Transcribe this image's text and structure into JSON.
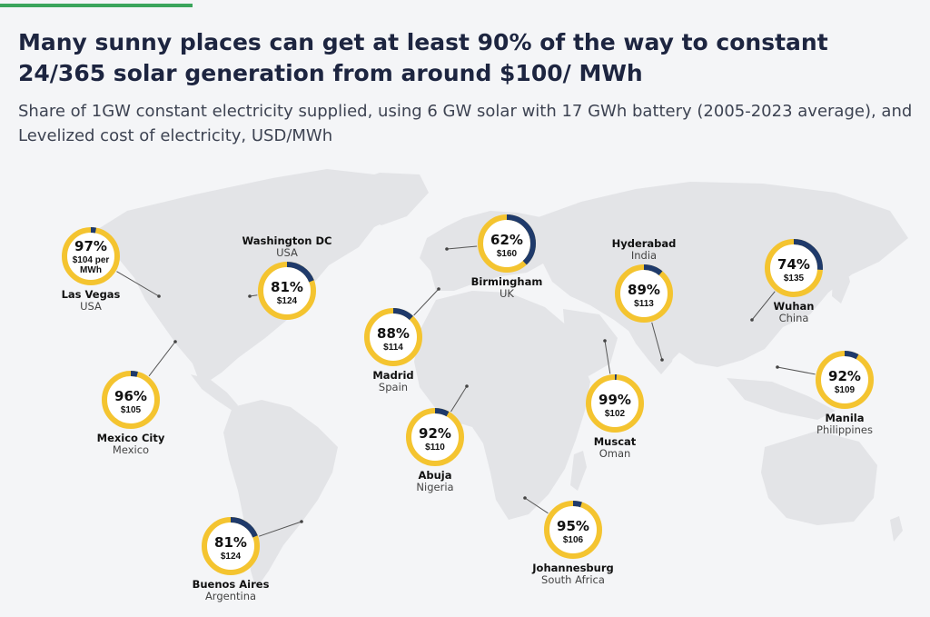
{
  "header": {
    "title": "Many sunny places can get at least 90% of the way to constant 24/365 solar generation from around $100/ MWh",
    "subtitle": "Share of 1GW constant electricity supplied, using 6 GW solar with 17 GWh battery (2005-2023 average), and Levelized cost of electricity, USD/MWh"
  },
  "colors": {
    "accent": "#3ba55c",
    "ring": "#f4c430",
    "gap": "#1f3a6b",
    "land": "#e3e4e7",
    "background": "#f4f5f7"
  },
  "chart_data": {
    "type": "donut-map",
    "title": "Many sunny places can get at least 90% of the way to constant 24/365 solar generation from around $100/ MWh",
    "subtitle": "Share of 1GW constant electricity supplied, using 6 GW solar with 17 GWh battery (2005-2023 average), and Levelized cost of electricity, USD/MWh",
    "unit_share": "%",
    "unit_cost": "USD/MWh",
    "locations": [
      {
        "city": "Las Vegas",
        "country": "USA",
        "share": 97,
        "share_label": "97%",
        "cost": 104,
        "cost_label": [
          "$104 per",
          "MWh"
        ]
      },
      {
        "city": "Washington DC",
        "country": "USA",
        "share": 81,
        "share_label": "81%",
        "cost": 124,
        "cost_label": [
          "$124"
        ]
      },
      {
        "city": "Mexico City",
        "country": "Mexico",
        "share": 96,
        "share_label": "96%",
        "cost": 105,
        "cost_label": [
          "$105"
        ]
      },
      {
        "city": "Buenos Aires",
        "country": "Argentina",
        "share": 81,
        "share_label": "81%",
        "cost": 124,
        "cost_label": [
          "$124"
        ]
      },
      {
        "city": "Birmingham",
        "country": "UK",
        "share": 62,
        "share_label": "62%",
        "cost": 160,
        "cost_label": [
          "$160"
        ]
      },
      {
        "city": "Madrid",
        "country": "Spain",
        "share": 88,
        "share_label": "88%",
        "cost": 114,
        "cost_label": [
          "$114"
        ]
      },
      {
        "city": "Abuja",
        "country": "Nigeria",
        "share": 92,
        "share_label": "92%",
        "cost": 110,
        "cost_label": [
          "$110"
        ]
      },
      {
        "city": "Johannesburg",
        "country": "South Africa",
        "share": 95,
        "share_label": "95%",
        "cost": 106,
        "cost_label": [
          "$106"
        ]
      },
      {
        "city": "Hyderabad",
        "country": "India",
        "share": 89,
        "share_label": "89%",
        "cost": 113,
        "cost_label": [
          "$113"
        ]
      },
      {
        "city": "Muscat",
        "country": "Oman",
        "share": 99,
        "share_label": "99%",
        "cost": 102,
        "cost_label": [
          "$102"
        ]
      },
      {
        "city": "Wuhan",
        "country": "China",
        "share": 74,
        "share_label": "74%",
        "cost": 135,
        "cost_label": [
          "$135"
        ]
      },
      {
        "city": "Manila",
        "country": "Philippines",
        "share": 92,
        "share_label": "92%",
        "cost": 109,
        "cost_label": [
          "$109"
        ]
      }
    ]
  }
}
